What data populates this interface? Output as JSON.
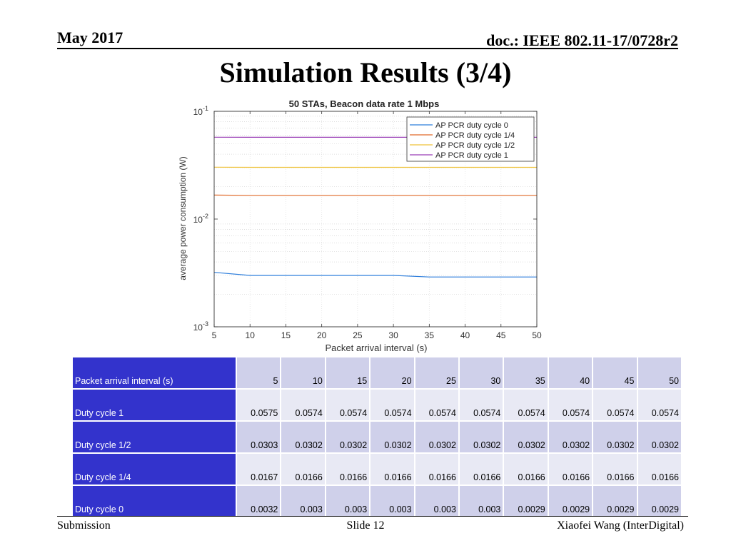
{
  "header": {
    "date": "May 2017",
    "doc": "doc.: IEEE 802.11-17/0728r2"
  },
  "slide_title": "Simulation Results (3/4)",
  "chart_data": {
    "type": "line",
    "title": "50 STAs, Beacon data rate 1 Mbps",
    "xlabel": "Packet arrival interval (s)",
    "ylabel": "average power consumption (W)",
    "xlim": [
      5,
      50
    ],
    "ylim": [
      0.001,
      0.1
    ],
    "yscale": "log",
    "x_ticks": [
      "5",
      "10",
      "15",
      "20",
      "25",
      "30",
      "35",
      "40",
      "45",
      "50"
    ],
    "y_ticks": [
      {
        "base": "10",
        "exp": "-1",
        "value": 0.1
      },
      {
        "base": "10",
        "exp": "-2",
        "value": 0.01
      },
      {
        "base": "10",
        "exp": "-3",
        "value": 0.001
      }
    ],
    "grid": "minor-dotted",
    "legend_position": "top-right",
    "x": [
      5,
      10,
      15,
      20,
      25,
      30,
      35,
      40,
      45,
      50
    ],
    "series": [
      {
        "name": "AP PCR duty cycle 0",
        "color": "#2f7fdc",
        "values": [
          0.0032,
          0.003,
          0.003,
          0.003,
          0.003,
          0.003,
          0.0029,
          0.0029,
          0.0029,
          0.0029
        ]
      },
      {
        "name": "AP PCR duty cycle 1/4",
        "color": "#e06a2a",
        "values": [
          0.0167,
          0.0166,
          0.0166,
          0.0166,
          0.0166,
          0.0166,
          0.0166,
          0.0166,
          0.0166,
          0.0166
        ]
      },
      {
        "name": "AP PCR duty cycle 1/2",
        "color": "#efc23a",
        "values": [
          0.0303,
          0.0302,
          0.0302,
          0.0302,
          0.0302,
          0.0302,
          0.0302,
          0.0302,
          0.0302,
          0.0302
        ]
      },
      {
        "name": "AP PCR duty cycle 1",
        "color": "#9a3fb6",
        "values": [
          0.0575,
          0.0574,
          0.0574,
          0.0574,
          0.0574,
          0.0574,
          0.0574,
          0.0574,
          0.0574,
          0.0574
        ]
      }
    ]
  },
  "table": {
    "rows": [
      {
        "label": "Packet arrival interval (s)",
        "values": [
          "5",
          "10",
          "15",
          "20",
          "25",
          "30",
          "35",
          "40",
          "45",
          "50"
        ]
      },
      {
        "label": "Duty cycle 1",
        "values": [
          "0.0575",
          "0.0574",
          "0.0574",
          "0.0574",
          "0.0574",
          "0.0574",
          "0.0574",
          "0.0574",
          "0.0574",
          "0.0574"
        ]
      },
      {
        "label": "Duty cycle 1/2",
        "values": [
          "0.0303",
          "0.0302",
          "0.0302",
          "0.0302",
          "0.0302",
          "0.0302",
          "0.0302",
          "0.0302",
          "0.0302",
          "0.0302"
        ]
      },
      {
        "label": "Duty cycle 1/4",
        "values": [
          "0.0167",
          "0.0166",
          "0.0166",
          "0.0166",
          "0.0166",
          "0.0166",
          "0.0166",
          "0.0166",
          "0.0166",
          "0.0166"
        ]
      },
      {
        "label": "Duty cycle 0",
        "values": [
          "0.0032",
          "0.003",
          "0.003",
          "0.003",
          "0.003",
          "0.003",
          "0.0029",
          "0.0029",
          "0.0029",
          "0.0029"
        ]
      }
    ]
  },
  "footer": {
    "left": "Submission",
    "center": "Slide 12",
    "right": "Xiaofei Wang (InterDigital)"
  }
}
